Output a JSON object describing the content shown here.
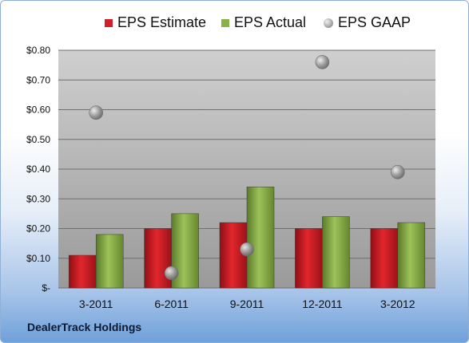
{
  "chart_data": {
    "type": "bar",
    "categories": [
      "3-2011",
      "6-2011",
      "9-2011",
      "12-2011",
      "3-2012"
    ],
    "series": [
      {
        "name": "EPS Estimate",
        "kind": "bar",
        "color": "#d0202a",
        "values": [
          0.11,
          0.2,
          0.22,
          0.2,
          0.2
        ]
      },
      {
        "name": "EPS Actual",
        "kind": "bar",
        "color": "#8cb04a",
        "values": [
          0.18,
          0.25,
          0.34,
          0.24,
          0.22
        ]
      },
      {
        "name": "EPS GAAP",
        "kind": "marker",
        "color": "#9e9e9e",
        "values": [
          0.59,
          0.05,
          0.13,
          0.76,
          0.39
        ]
      }
    ],
    "yticks": [
      "$-",
      "$0.10",
      "$0.20",
      "$0.30",
      "$0.40",
      "$0.50",
      "$0.60",
      "$0.70",
      "$0.80"
    ],
    "ylim": [
      0,
      0.8
    ],
    "grid": true,
    "legend": "top"
  },
  "legend": {
    "estimate": "EPS Estimate",
    "actual": "EPS Actual",
    "gaap": "EPS GAAP"
  },
  "company": "DealerTrack Holdings"
}
